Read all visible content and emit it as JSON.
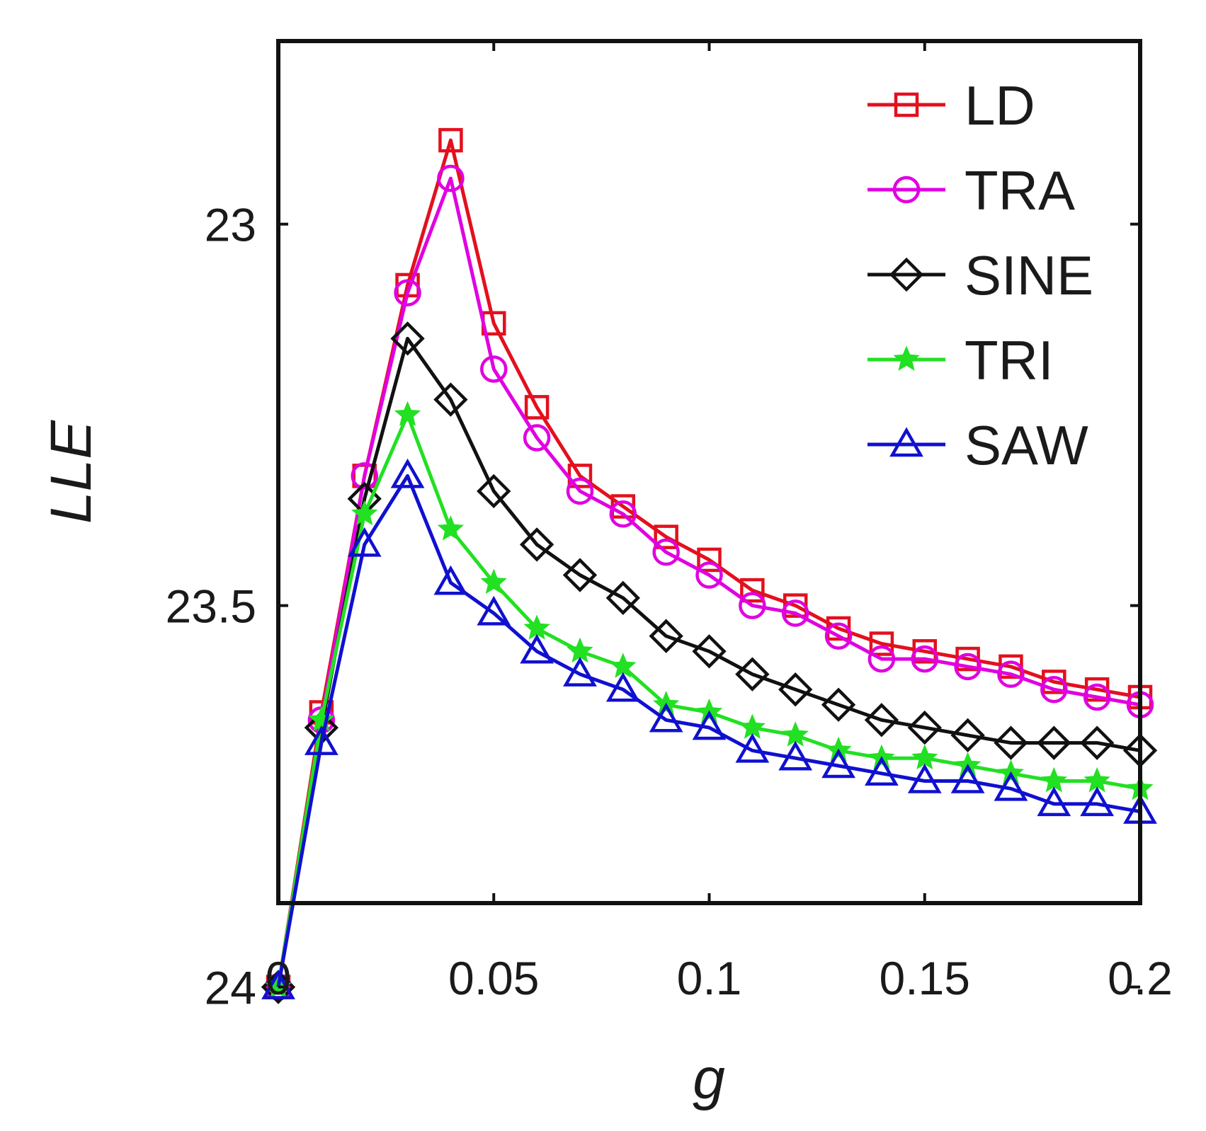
{
  "chart_data": {
    "type": "line",
    "title": "",
    "xlabel": "g",
    "ylabel": "LLE",
    "xlim": [
      0,
      0.2
    ],
    "ylim": [
      23.89,
      22.76
    ],
    "y_reversed": true,
    "x_ticks": [
      0,
      0.05,
      0.1,
      0.15,
      0.2
    ],
    "x_tick_labels": [
      "0",
      "0.05",
      "0.1",
      "0.15",
      "0.2"
    ],
    "y_ticks": [
      23.0,
      23.5,
      24.0
    ],
    "y_tick_labels": [
      "23",
      "23.5",
      "24"
    ],
    "grid": false,
    "legend_position": "top-right",
    "x": [
      0,
      0.01,
      0.02,
      0.03,
      0.04,
      0.05,
      0.06,
      0.07,
      0.08,
      0.09,
      0.1,
      0.11,
      0.12,
      0.13,
      0.14,
      0.15,
      0.16,
      0.17,
      0.18,
      0.19,
      0.2
    ],
    "series": [
      {
        "name": "LD",
        "color": "#e3101e",
        "marker": "square",
        "values": [
          24.0,
          23.64,
          23.33,
          23.08,
          22.89,
          23.13,
          23.24,
          23.33,
          23.37,
          23.41,
          23.44,
          23.48,
          23.5,
          23.53,
          23.55,
          23.56,
          23.57,
          23.58,
          23.6,
          23.61,
          23.62
        ]
      },
      {
        "name": "TRA",
        "color": "#e000e0",
        "marker": "circle",
        "values": [
          24.0,
          23.65,
          23.33,
          23.09,
          22.94,
          23.19,
          23.28,
          23.35,
          23.38,
          23.43,
          23.46,
          23.5,
          23.51,
          23.54,
          23.57,
          23.57,
          23.58,
          23.59,
          23.61,
          23.62,
          23.63
        ]
      },
      {
        "name": "SINE",
        "color": "#111111",
        "marker": "diamond",
        "values": [
          24.0,
          23.66,
          23.36,
          23.15,
          23.23,
          23.35,
          23.42,
          23.46,
          23.49,
          23.54,
          23.56,
          23.59,
          23.61,
          23.63,
          23.65,
          23.66,
          23.67,
          23.68,
          23.68,
          23.68,
          23.69
        ]
      },
      {
        "name": "TRI",
        "color": "#22e022",
        "marker": "star",
        "values": [
          24.0,
          23.65,
          23.38,
          23.25,
          23.4,
          23.47,
          23.53,
          23.56,
          23.58,
          23.63,
          23.64,
          23.66,
          23.67,
          23.69,
          23.7,
          23.7,
          23.71,
          23.72,
          23.73,
          23.73,
          23.74
        ]
      },
      {
        "name": "SAW",
        "color": "#1010d0",
        "marker": "triangle",
        "values": [
          24.0,
          23.68,
          23.42,
          23.33,
          23.47,
          23.51,
          23.56,
          23.59,
          23.61,
          23.65,
          23.66,
          23.69,
          23.7,
          23.71,
          23.72,
          23.73,
          23.73,
          23.74,
          23.76,
          23.76,
          23.77
        ]
      }
    ]
  }
}
